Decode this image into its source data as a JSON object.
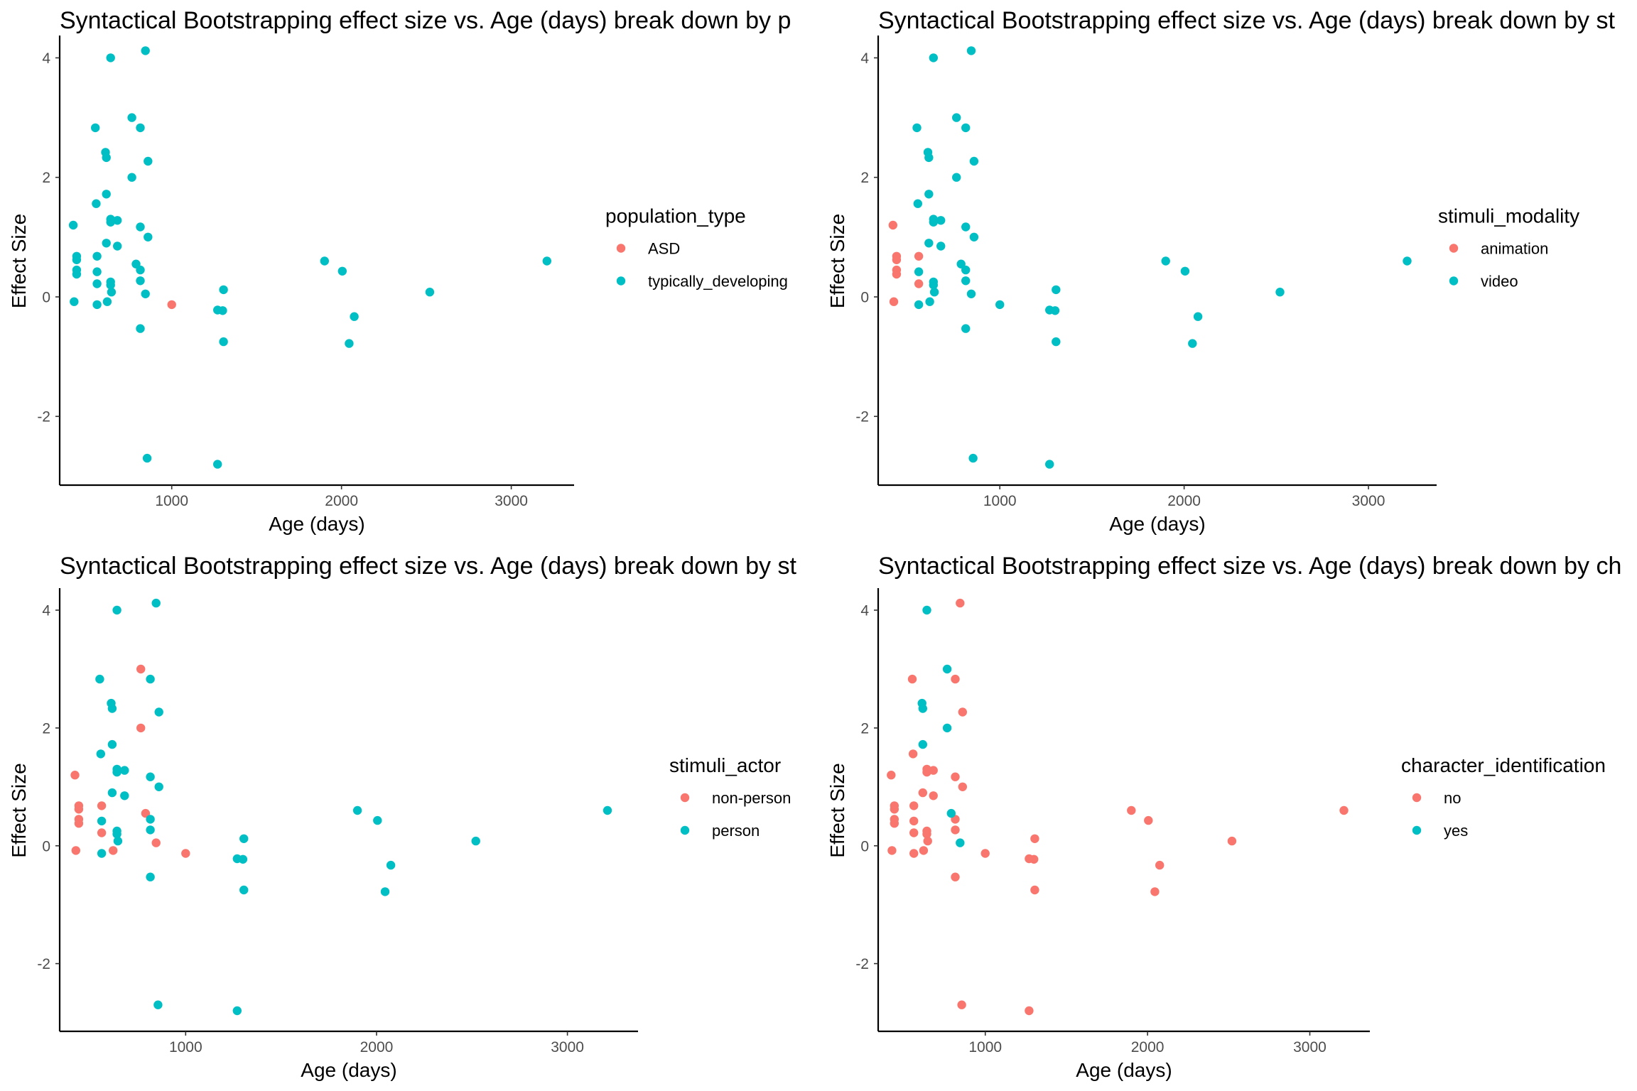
{
  "chart_data": [
    {
      "type": "scatter",
      "title": "Syntactical Bootstrapping effect size vs. Age (days) break down by p",
      "xlabel": "Age (days)",
      "ylabel": "Effect Size",
      "xticks": [
        1000,
        2000,
        3000
      ],
      "yticks": [
        -2,
        0,
        2,
        4
      ],
      "xlim": [
        340,
        3370
      ],
      "ylim": [
        -3.15,
        4.35
      ],
      "grid": false,
      "legend_title": "population_type",
      "legend_placement": "right",
      "series": [
        {
          "name": "ASD",
          "color": "#F8766D",
          "points": [
            [
              1000,
              -0.13
            ]
          ]
        },
        {
          "name": "typically_developing",
          "color": "#00BFC4",
          "points": [
            [
              420,
              1.2
            ],
            [
              425,
              -0.08
            ],
            [
              440,
              0.68
            ],
            [
              440,
              0.62
            ],
            [
              440,
              0.45
            ],
            [
              440,
              0.38
            ],
            [
              550,
              2.83
            ],
            [
              555,
              1.56
            ],
            [
              560,
              0.68
            ],
            [
              560,
              0.42
            ],
            [
              560,
              0.22
            ],
            [
              560,
              -0.13
            ],
            [
              610,
              2.42
            ],
            [
              615,
              2.33
            ],
            [
              615,
              1.72
            ],
            [
              615,
              0.9
            ],
            [
              620,
              -0.08
            ],
            [
              640,
              4.0
            ],
            [
              640,
              1.3
            ],
            [
              640,
              1.25
            ],
            [
              640,
              0.25
            ],
            [
              640,
              0.2
            ],
            [
              645,
              0.08
            ],
            [
              680,
              1.28
            ],
            [
              680,
              0.85
            ],
            [
              765,
              3.0
            ],
            [
              765,
              2.0
            ],
            [
              790,
              0.55
            ],
            [
              815,
              2.83
            ],
            [
              815,
              1.17
            ],
            [
              815,
              0.45
            ],
            [
              815,
              0.27
            ],
            [
              815,
              -0.53
            ],
            [
              845,
              4.12
            ],
            [
              845,
              0.05
            ],
            [
              855,
              -2.7
            ],
            [
              860,
              2.27
            ],
            [
              860,
              1.0
            ],
            [
              1270,
              -0.22
            ],
            [
              1270,
              -2.8
            ],
            [
              1300,
              -0.23
            ],
            [
              1305,
              -0.75
            ],
            [
              1305,
              0.12
            ],
            [
              1900,
              0.6
            ],
            [
              2005,
              0.43
            ],
            [
              2045,
              -0.78
            ],
            [
              2075,
              -0.33
            ],
            [
              2520,
              0.08
            ],
            [
              3210,
              0.6
            ]
          ]
        }
      ]
    },
    {
      "type": "scatter",
      "title": "Syntactical Bootstrapping effect size vs. Age (days) break down by st",
      "xlabel": "Age (days)",
      "ylabel": "Effect Size",
      "xticks": [
        1000,
        2000,
        3000
      ],
      "yticks": [
        -2,
        0,
        2,
        4
      ],
      "xlim": [
        340,
        3370
      ],
      "ylim": [
        -3.15,
        4.35
      ],
      "grid": false,
      "legend_title": "stimuli_modality",
      "legend_placement": "right",
      "series": [
        {
          "name": "animation",
          "color": "#F8766D",
          "points": [
            [
              420,
              1.2
            ],
            [
              425,
              -0.08
            ],
            [
              440,
              0.68
            ],
            [
              440,
              0.62
            ],
            [
              440,
              0.45
            ],
            [
              440,
              0.38
            ],
            [
              560,
              0.68
            ],
            [
              560,
              0.22
            ]
          ]
        },
        {
          "name": "video",
          "color": "#00BFC4",
          "points": [
            [
              550,
              2.83
            ],
            [
              555,
              1.56
            ],
            [
              560,
              0.42
            ],
            [
              560,
              -0.13
            ],
            [
              610,
              2.42
            ],
            [
              615,
              2.33
            ],
            [
              615,
              1.72
            ],
            [
              615,
              0.9
            ],
            [
              620,
              -0.08
            ],
            [
              640,
              4.0
            ],
            [
              640,
              1.3
            ],
            [
              640,
              1.25
            ],
            [
              640,
              0.25
            ],
            [
              640,
              0.2
            ],
            [
              645,
              0.08
            ],
            [
              680,
              1.28
            ],
            [
              680,
              0.85
            ],
            [
              765,
              3.0
            ],
            [
              765,
              2.0
            ],
            [
              790,
              0.55
            ],
            [
              815,
              2.83
            ],
            [
              815,
              1.17
            ],
            [
              815,
              0.45
            ],
            [
              815,
              0.27
            ],
            [
              815,
              -0.53
            ],
            [
              845,
              4.12
            ],
            [
              845,
              0.05
            ],
            [
              855,
              -2.7
            ],
            [
              860,
              2.27
            ],
            [
              860,
              1.0
            ],
            [
              1000,
              -0.13
            ],
            [
              1270,
              -0.22
            ],
            [
              1270,
              -2.8
            ],
            [
              1300,
              -0.23
            ],
            [
              1305,
              -0.75
            ],
            [
              1305,
              0.12
            ],
            [
              1900,
              0.6
            ],
            [
              2005,
              0.43
            ],
            [
              2045,
              -0.78
            ],
            [
              2075,
              -0.33
            ],
            [
              2520,
              0.08
            ],
            [
              3210,
              0.6
            ]
          ]
        }
      ]
    },
    {
      "type": "scatter",
      "title": "Syntactical Bootstrapping effect size vs. Age (days) break down by st",
      "xlabel": "Age (days)",
      "ylabel": "Effect Size",
      "xticks": [
        1000,
        2000,
        3000
      ],
      "yticks": [
        -2,
        0,
        2,
        4
      ],
      "xlim": [
        340,
        3370
      ],
      "ylim": [
        -3.15,
        4.35
      ],
      "grid": false,
      "legend_title": "stimuli_actor",
      "legend_placement": "right",
      "series": [
        {
          "name": "non-person",
          "color": "#F8766D",
          "points": [
            [
              420,
              1.2
            ],
            [
              425,
              -0.08
            ],
            [
              440,
              0.68
            ],
            [
              440,
              0.62
            ],
            [
              440,
              0.45
            ],
            [
              440,
              0.38
            ],
            [
              560,
              0.68
            ],
            [
              560,
              0.22
            ],
            [
              620,
              -0.08
            ],
            [
              765,
              3.0
            ],
            [
              765,
              2.0
            ],
            [
              790,
              0.55
            ],
            [
              845,
              0.05
            ],
            [
              1000,
              -0.13
            ]
          ]
        },
        {
          "name": "person",
          "color": "#00BFC4",
          "points": [
            [
              550,
              2.83
            ],
            [
              555,
              1.56
            ],
            [
              560,
              0.42
            ],
            [
              560,
              -0.13
            ],
            [
              610,
              2.42
            ],
            [
              615,
              2.33
            ],
            [
              615,
              1.72
            ],
            [
              615,
              0.9
            ],
            [
              640,
              4.0
            ],
            [
              640,
              1.3
            ],
            [
              640,
              1.25
            ],
            [
              640,
              0.25
            ],
            [
              640,
              0.2
            ],
            [
              645,
              0.08
            ],
            [
              680,
              1.28
            ],
            [
              680,
              0.85
            ],
            [
              815,
              2.83
            ],
            [
              815,
              1.17
            ],
            [
              815,
              0.45
            ],
            [
              815,
              0.27
            ],
            [
              815,
              -0.53
            ],
            [
              845,
              4.12
            ],
            [
              855,
              -2.7
            ],
            [
              860,
              2.27
            ],
            [
              860,
              1.0
            ],
            [
              1270,
              -0.22
            ],
            [
              1270,
              -2.8
            ],
            [
              1300,
              -0.23
            ],
            [
              1305,
              -0.75
            ],
            [
              1305,
              0.12
            ],
            [
              1900,
              0.6
            ],
            [
              2005,
              0.43
            ],
            [
              2045,
              -0.78
            ],
            [
              2075,
              -0.33
            ],
            [
              2520,
              0.08
            ],
            [
              3210,
              0.6
            ]
          ]
        }
      ]
    },
    {
      "type": "scatter",
      "title": "Syntactical Bootstrapping effect size vs. Age (days) break down by ch",
      "xlabel": "Age (days)",
      "ylabel": "Effect Size",
      "xticks": [
        1000,
        2000,
        3000
      ],
      "yticks": [
        -2,
        0,
        2,
        4
      ],
      "xlim": [
        340,
        3370
      ],
      "ylim": [
        -3.15,
        4.35
      ],
      "grid": false,
      "legend_title": "character_identification",
      "legend_placement": "right",
      "series": [
        {
          "name": "no",
          "color": "#F8766D",
          "points": [
            [
              420,
              1.2
            ],
            [
              425,
              -0.08
            ],
            [
              440,
              0.68
            ],
            [
              440,
              0.62
            ],
            [
              440,
              0.45
            ],
            [
              440,
              0.38
            ],
            [
              550,
              2.83
            ],
            [
              555,
              1.56
            ],
            [
              560,
              0.68
            ],
            [
              560,
              0.42
            ],
            [
              560,
              0.22
            ],
            [
              560,
              -0.13
            ],
            [
              615,
              0.9
            ],
            [
              620,
              -0.08
            ],
            [
              640,
              1.3
            ],
            [
              640,
              1.25
            ],
            [
              640,
              0.25
            ],
            [
              640,
              0.2
            ],
            [
              645,
              0.08
            ],
            [
              680,
              1.28
            ],
            [
              680,
              0.85
            ],
            [
              815,
              2.83
            ],
            [
              815,
              1.17
            ],
            [
              815,
              0.45
            ],
            [
              815,
              0.27
            ],
            [
              815,
              -0.53
            ],
            [
              845,
              4.12
            ],
            [
              855,
              -2.7
            ],
            [
              860,
              2.27
            ],
            [
              860,
              1.0
            ],
            [
              1000,
              -0.13
            ],
            [
              1270,
              -0.22
            ],
            [
              1270,
              -2.8
            ],
            [
              1300,
              -0.23
            ],
            [
              1305,
              -0.75
            ],
            [
              1305,
              0.12
            ],
            [
              1900,
              0.6
            ],
            [
              2005,
              0.43
            ],
            [
              2045,
              -0.78
            ],
            [
              2075,
              -0.33
            ],
            [
              2520,
              0.08
            ],
            [
              3210,
              0.6
            ]
          ]
        },
        {
          "name": "yes",
          "color": "#00BFC4",
          "points": [
            [
              610,
              2.42
            ],
            [
              615,
              2.33
            ],
            [
              615,
              1.72
            ],
            [
              640,
              4.0
            ],
            [
              765,
              3.0
            ],
            [
              765,
              2.0
            ],
            [
              790,
              0.55
            ],
            [
              845,
              0.05
            ]
          ]
        }
      ]
    }
  ]
}
